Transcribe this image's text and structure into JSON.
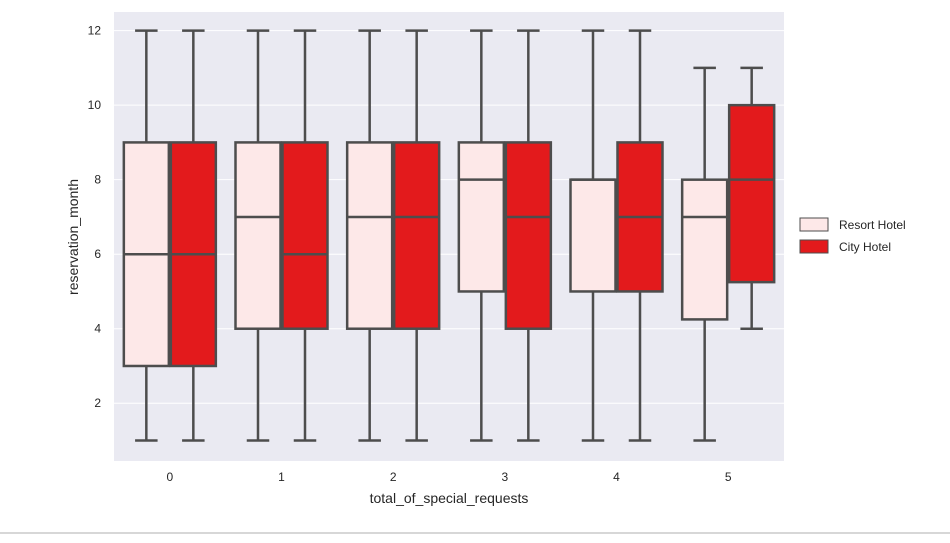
{
  "chart_data": {
    "type": "box",
    "title": "",
    "xlabel": "total_of_special_requests",
    "ylabel": "reservation_month",
    "categories": [
      "0",
      "1",
      "2",
      "3",
      "4",
      "5"
    ],
    "ylim": [
      0.45,
      12.5
    ],
    "yticks": [
      2,
      4,
      6,
      8,
      10,
      12
    ],
    "grid": true,
    "legend_position": "right",
    "series": [
      {
        "name": "Resort Hotel",
        "color": "#fde8e8",
        "boxes": [
          {
            "whisker_low": 1,
            "q1": 3,
            "median": 6,
            "q3": 9,
            "whisker_high": 12
          },
          {
            "whisker_low": 1,
            "q1": 4,
            "median": 7,
            "q3": 9,
            "whisker_high": 12
          },
          {
            "whisker_low": 1,
            "q1": 4,
            "median": 7,
            "q3": 9,
            "whisker_high": 12
          },
          {
            "whisker_low": 1,
            "q1": 5,
            "median": 8,
            "q3": 9,
            "whisker_high": 12
          },
          {
            "whisker_low": 1,
            "q1": 5,
            "median": 8,
            "q3": 8,
            "whisker_high": 12
          },
          {
            "whisker_low": 1,
            "q1": 4.25,
            "median": 7,
            "q3": 8,
            "whisker_high": 11
          }
        ]
      },
      {
        "name": "City Hotel",
        "color": "#e31a1c",
        "boxes": [
          {
            "whisker_low": 1,
            "q1": 3,
            "median": 6,
            "q3": 9,
            "whisker_high": 12
          },
          {
            "whisker_low": 1,
            "q1": 4,
            "median": 6,
            "q3": 9,
            "whisker_high": 12
          },
          {
            "whisker_low": 1,
            "q1": 4,
            "median": 7,
            "q3": 9,
            "whisker_high": 12
          },
          {
            "whisker_low": 1,
            "q1": 4,
            "median": 7,
            "q3": 9,
            "whisker_high": 12
          },
          {
            "whisker_low": 1,
            "q1": 5,
            "median": 7,
            "q3": 9,
            "whisker_high": 12
          },
          {
            "whisker_low": 4,
            "q1": 5.25,
            "median": 8,
            "q3": 10,
            "whisker_high": 11
          }
        ]
      }
    ],
    "colors": {
      "plot_background": "#eaeaf2",
      "grid": "#ffffff",
      "box_edge": "#4d4d4d"
    }
  }
}
